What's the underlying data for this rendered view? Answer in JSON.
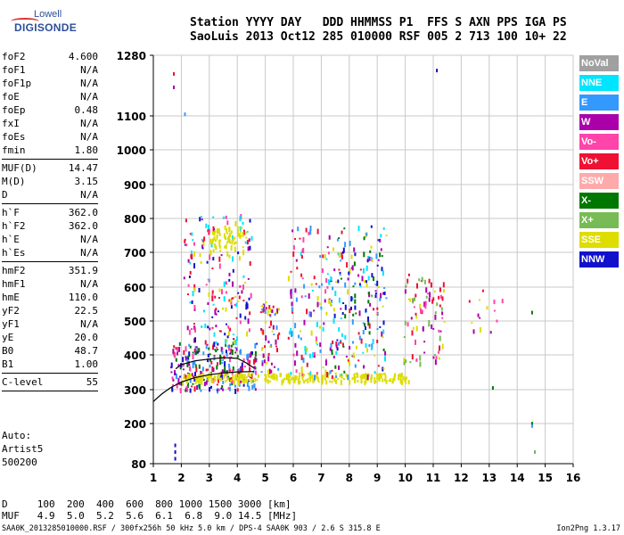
{
  "logo": {
    "line1": "Lowell",
    "line2": "DIGISONDE"
  },
  "header": {
    "line1": "Station YYYY DAY   DDD HHMMSS P1  FFS S AXN PPS IGA PS",
    "line2": "SaoLuis 2013 Oct12 285 010000 RSF 005 2 713 100 10+ 22"
  },
  "params": [
    {
      "label": "foF2",
      "value": "4.600"
    },
    {
      "label": "foF1",
      "value": "N/A"
    },
    {
      "label": "foF1p",
      "value": "N/A"
    },
    {
      "label": "foE",
      "value": "N/A"
    },
    {
      "label": "foEp",
      "value": "0.48"
    },
    {
      "label": "fxI",
      "value": "N/A"
    },
    {
      "label": "foEs",
      "value": "N/A"
    },
    {
      "label": "fmin",
      "value": "1.80"
    },
    {
      "sep": true
    },
    {
      "label": "MUF(D)",
      "value": "14.47"
    },
    {
      "label": "M(D)",
      "value": "3.15"
    },
    {
      "label": "D",
      "value": "N/A"
    },
    {
      "sep": true
    },
    {
      "label": "h`F",
      "value": "362.0"
    },
    {
      "label": "h`F2",
      "value": "362.0"
    },
    {
      "label": "h`E",
      "value": "N/A"
    },
    {
      "label": "h`Es",
      "value": "N/A"
    },
    {
      "sep": true
    },
    {
      "label": "hmF2",
      "value": "351.9"
    },
    {
      "label": "hmF1",
      "value": "N/A"
    },
    {
      "label": "hmE",
      "value": "110.0"
    },
    {
      "label": "yF2",
      "value": "22.5"
    },
    {
      "label": "yF1",
      "value": "N/A"
    },
    {
      "label": "yE",
      "value": "20.0"
    },
    {
      "label": "B0",
      "value": "48.7"
    },
    {
      "label": "B1",
      "value": "1.00"
    },
    {
      "sep": true
    },
    {
      "label": "C-level",
      "value": "55"
    },
    {
      "sep": true
    }
  ],
  "auto": {
    "line1": "Auto:",
    "line2": "Artist5",
    "line3": "500200"
  },
  "muf_table": {
    "line1": "D     100  200  400  600  800 1000 1500 3000 [km]",
    "line2": "MUF   4.9  5.0  5.2  5.6  6.1  6.8  9.0 14.5 [MHz]"
  },
  "footer": {
    "left": "SAA0K_2013285010000.RSF / 300fx256h 50 kHz 5.0 km / DPS-4 SAA0K 903 / 2.6 S 315.8 E",
    "right": "Ion2Png 1.3.17"
  },
  "legend": [
    {
      "label": "NoVal",
      "color": "#a0a0a0"
    },
    {
      "label": "NNE",
      "color": "#00e5ff"
    },
    {
      "label": "E",
      "color": "#3399ff"
    },
    {
      "label": "W",
      "color": "#aa00aa"
    },
    {
      "label": "Vo-",
      "color": "#ff44aa"
    },
    {
      "label": "Vo+",
      "color": "#ee1133"
    },
    {
      "label": "SSW",
      "color": "#ffaaaa"
    },
    {
      "label": "X-",
      "color": "#007700"
    },
    {
      "label": "X+",
      "color": "#77bb55"
    },
    {
      "label": "SSE",
      "color": "#dddd00"
    },
    {
      "label": "NNW",
      "color": "#1111cc"
    }
  ],
  "chart_data": {
    "type": "scatter",
    "title": "",
    "xlabel": "",
    "ylabel": "",
    "xlim": [
      1,
      16
    ],
    "ylim_log": true,
    "yticks": [
      80,
      200,
      300,
      400,
      500,
      600,
      700,
      800,
      900,
      1000,
      1100,
      1280
    ],
    "xticks": [
      1,
      2,
      3,
      4,
      5,
      6,
      7,
      8,
      9,
      10,
      11,
      12,
      13,
      14,
      15,
      16
    ],
    "grid": true,
    "legend_position": "right",
    "echo_clusters": [
      {
        "f0": 1.6,
        "f1": 4.7,
        "h0": 300,
        "h1": 440,
        "dens": 260,
        "colors": [
          "#ee1133",
          "#ff44aa",
          "#aa00aa",
          "#3399ff",
          "#007700",
          "#1111cc"
        ]
      },
      {
        "f0": 2.0,
        "f1": 4.5,
        "h0": 440,
        "h1": 820,
        "dens": 180,
        "colors": [
          "#ee1133",
          "#ff44aa",
          "#aa00aa",
          "#dddd00",
          "#00e5ff",
          "#1111cc"
        ]
      },
      {
        "f0": 3.0,
        "f1": 4.2,
        "h0": 700,
        "h1": 780,
        "dens": 60,
        "colors": [
          "#dddd00"
        ]
      },
      {
        "f0": 2.0,
        "f1": 10.2,
        "h0": 325,
        "h1": 350,
        "dens": 260,
        "colors": [
          "#dddd00"
        ]
      },
      {
        "f0": 4.8,
        "f1": 5.5,
        "h0": 350,
        "h1": 560,
        "dens": 60,
        "colors": [
          "#ee1133",
          "#aa00aa",
          "#dddd00",
          "#3399ff"
        ]
      },
      {
        "f0": 5.8,
        "f1": 7.3,
        "h0": 330,
        "h1": 780,
        "dens": 120,
        "colors": [
          "#ee1133",
          "#aa00aa",
          "#ff44aa",
          "#00e5ff",
          "#dddd00",
          "#3399ff"
        ]
      },
      {
        "f0": 7.3,
        "f1": 9.3,
        "h0": 340,
        "h1": 780,
        "dens": 200,
        "colors": [
          "#1111cc",
          "#3399ff",
          "#00e5ff",
          "#ee1133",
          "#aa00aa",
          "#dddd00",
          "#007700"
        ]
      },
      {
        "f0": 9.9,
        "f1": 11.4,
        "h0": 380,
        "h1": 640,
        "dens": 90,
        "colors": [
          "#ee1133",
          "#ff44aa",
          "#aa00aa",
          "#dddd00",
          "#77bb55"
        ]
      },
      {
        "f0": 12.1,
        "f1": 13.5,
        "h0": 470,
        "h1": 600,
        "dens": 14,
        "colors": [
          "#ee1133",
          "#aa00aa",
          "#dddd00",
          "#ff44aa"
        ]
      }
    ],
    "isolated_points": [
      {
        "f": 1.7,
        "h": 1230,
        "color": "#ee1133"
      },
      {
        "f": 1.7,
        "h": 1190,
        "color": "#aa00aa"
      },
      {
        "f": 2.1,
        "h": 1110,
        "color": "#3399ff"
      },
      {
        "f": 11.1,
        "h": 1240,
        "color": "#1111cc"
      },
      {
        "f": 14.5,
        "h": 530,
        "color": "#007700"
      },
      {
        "f": 14.5,
        "h": 205,
        "color": "#007700"
      },
      {
        "f": 14.5,
        "h": 198,
        "color": "#3399ff"
      },
      {
        "f": 14.6,
        "h": 120,
        "color": "#77bb55"
      },
      {
        "f": 13.1,
        "h": 310,
        "color": "#007700"
      },
      {
        "f": 1.75,
        "h": 120,
        "color": "#1111cc"
      },
      {
        "f": 1.75,
        "h": 100,
        "color": "#1111cc"
      },
      {
        "f": 1.75,
        "h": 140,
        "color": "#1111cc"
      }
    ],
    "profile_curve": [
      [
        1,
        265
      ],
      [
        1.3,
        287
      ],
      [
        1.6,
        305
      ],
      [
        2.0,
        322
      ],
      [
        2.5,
        335
      ],
      [
        3.0,
        343
      ],
      [
        3.5,
        348
      ],
      [
        4.0,
        351
      ],
      [
        4.6,
        352
      ]
    ],
    "trace_curve": [
      [
        1.8,
        360
      ],
      [
        2.0,
        372
      ],
      [
        2.5,
        383
      ],
      [
        3.0,
        388
      ],
      [
        3.5,
        392
      ],
      [
        4.0,
        390
      ],
      [
        4.3,
        378
      ],
      [
        4.6,
        362
      ]
    ]
  }
}
